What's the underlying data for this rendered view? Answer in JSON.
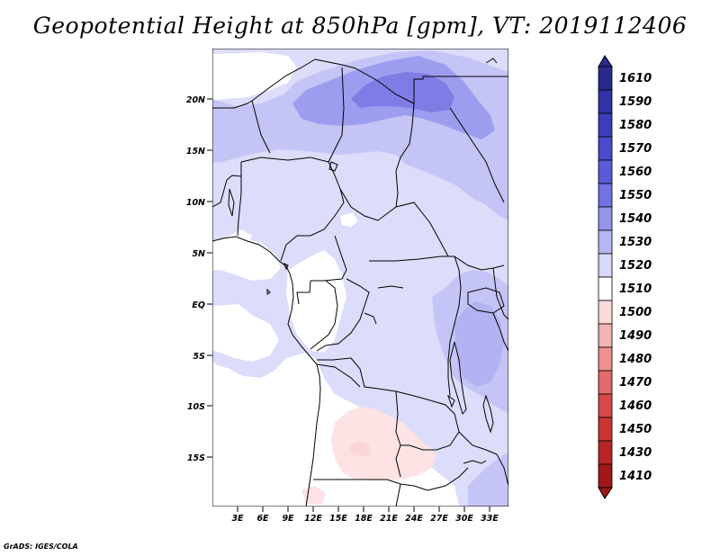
{
  "title": "Geopotential Height at 850hPa [gpm], VT: 2019112406",
  "footer": "GrADS: IGES/COLA",
  "map": {
    "variable": "Geopotential Height at 850hPa",
    "units": "gpm",
    "valid_time": "2019112406",
    "lat_labels": [
      "20N",
      "15N",
      "10N",
      "5N",
      "EQ",
      "5S",
      "10S",
      "15S"
    ],
    "lon_labels": [
      "3E",
      "6E",
      "9E",
      "12E",
      "15E",
      "18E",
      "21E",
      "24E",
      "27E",
      "30E",
      "33E"
    ]
  },
  "colorbar": {
    "levels": [
      "1610",
      "1590",
      "1580",
      "1570",
      "1560",
      "1550",
      "1540",
      "1530",
      "1520",
      "1510",
      "1500",
      "1490",
      "1480",
      "1470",
      "1460",
      "1450",
      "1430",
      "1410"
    ],
    "colors": [
      "#2a2a8c",
      "#3333a8",
      "#3d3dbc",
      "#4a4acc",
      "#5a5ad8",
      "#7272e2",
      "#9595ec",
      "#b5b5f3",
      "#d8d8fa",
      "#ffffff",
      "#fbdada",
      "#f4b4b4",
      "#ec9090",
      "#e26a6a",
      "#d84848",
      "#cc3333",
      "#b82424",
      "#a01818"
    ]
  },
  "colors": {
    "land_blue_light": "#dcdcfb",
    "land_blue_mid": "#c4c4f6",
    "land_blue_dark": "#9d9df0",
    "land_blue_darkest": "#7d7ae6",
    "pink_light": "#fde3e3",
    "pink_mid": "#fbd0d0"
  }
}
